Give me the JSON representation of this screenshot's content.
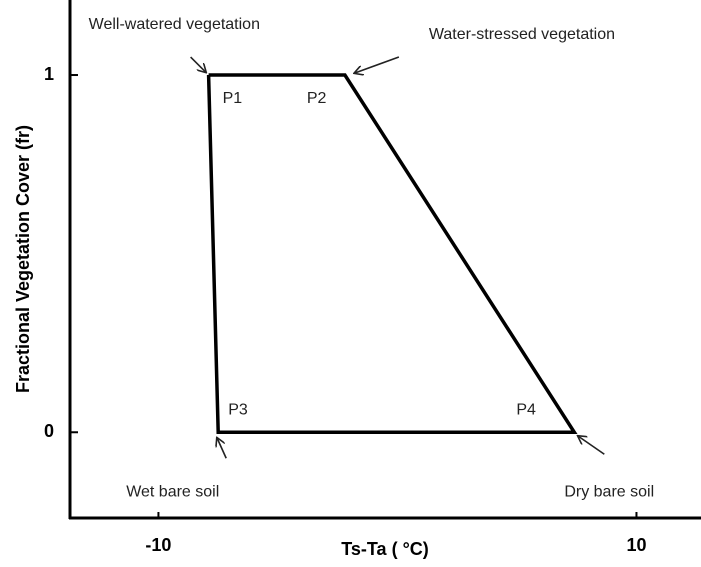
{
  "chart_data": {
    "type": "line",
    "x_label": "Ts-Ta ( °C)",
    "y_label": "Fractional Vegetation Cover (fr)",
    "series": [
      {
        "color": "#000000",
        "x": [
          -7.9,
          -2.2,
          7.4,
          -7.5,
          -7.9
        ],
        "values": [
          1,
          1,
          0,
          0,
          1
        ]
      }
    ],
    "point_labels": [
      "P1",
      "P2",
      "P4",
      "P3"
    ],
    "annotations": [
      "Well-watered vegetation",
      "Water-stressed vegetation",
      "Dry bare soil",
      "Wet bare soil"
    ],
    "xlim": [
      -13.7,
      12.7
    ],
    "xticks": [
      -10,
      10
    ],
    "ylim": [
      -0.24,
      1.21
    ],
    "yticks": [
      0,
      1
    ],
    "grid": false
  }
}
